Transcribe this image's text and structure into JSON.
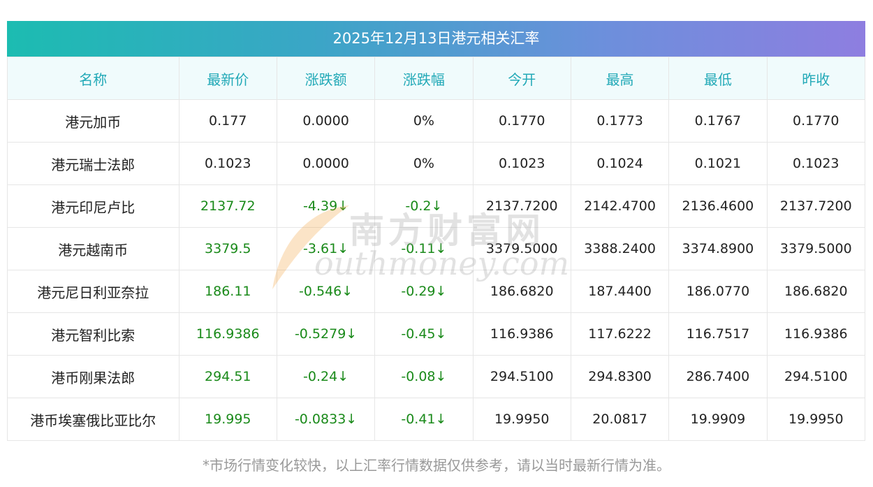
{
  "title": "2025年12月13日港元相关汇率",
  "headers": [
    "名称",
    "最新价",
    "涨跌额",
    "涨跌幅",
    "今开",
    "最高",
    "最低",
    "昨收"
  ],
  "rows": [
    {
      "name": "港元加币",
      "latest": "0.177",
      "change": "0.0000",
      "change_pct": "0%",
      "open": "0.1770",
      "high": "0.1773",
      "low": "0.1767",
      "prev_close": "0.1770",
      "down": false
    },
    {
      "name": "港元瑞士法郎",
      "latest": "0.1023",
      "change": "0.0000",
      "change_pct": "0%",
      "open": "0.1023",
      "high": "0.1024",
      "low": "0.1021",
      "prev_close": "0.1023",
      "down": false
    },
    {
      "name": "港元印尼卢比",
      "latest": "2137.72",
      "change": "-4.39↓",
      "change_pct": "-0.2↓",
      "open": "2137.7200",
      "high": "2142.4700",
      "low": "2136.4600",
      "prev_close": "2137.7200",
      "down": true
    },
    {
      "name": "港元越南币",
      "latest": "3379.5",
      "change": "-3.61↓",
      "change_pct": "-0.11↓",
      "open": "3379.5000",
      "high": "3388.2400",
      "low": "3374.8900",
      "prev_close": "3379.5000",
      "down": true
    },
    {
      "name": "港元尼日利亚奈拉",
      "latest": "186.11",
      "change": "-0.546↓",
      "change_pct": "-0.29↓",
      "open": "186.6820",
      "high": "187.4400",
      "low": "186.0770",
      "prev_close": "186.6820",
      "down": true
    },
    {
      "name": "港元智利比索",
      "latest": "116.9386",
      "change": "-0.5279↓",
      "change_pct": "-0.45↓",
      "open": "116.9386",
      "high": "117.6222",
      "low": "116.7517",
      "prev_close": "116.9386",
      "down": true
    },
    {
      "name": "港币刚果法郎",
      "latest": "294.51",
      "change": "-0.24↓",
      "change_pct": "-0.08↓",
      "open": "294.5100",
      "high": "294.8300",
      "low": "286.7400",
      "prev_close": "294.5100",
      "down": true
    },
    {
      "name": "港币埃塞俄比亚比尔",
      "latest": "19.995",
      "change": "-0.0833↓",
      "change_pct": "-0.41↓",
      "open": "19.9950",
      "high": "20.0817",
      "low": "19.9909",
      "prev_close": "19.9950",
      "down": true
    }
  ],
  "footnote": "*市场行情变化较快，以上汇率行情数据仅供参考，请以当时最新行情为准。",
  "watermark": {
    "cn": "南方财富网",
    "en": "outhmoney.com"
  },
  "colors": {
    "header_text": "#22a9b7",
    "down": "#1a8a1a",
    "title_gradient_start": "#1cbcb1",
    "title_gradient_end": "#8e7ee0"
  }
}
